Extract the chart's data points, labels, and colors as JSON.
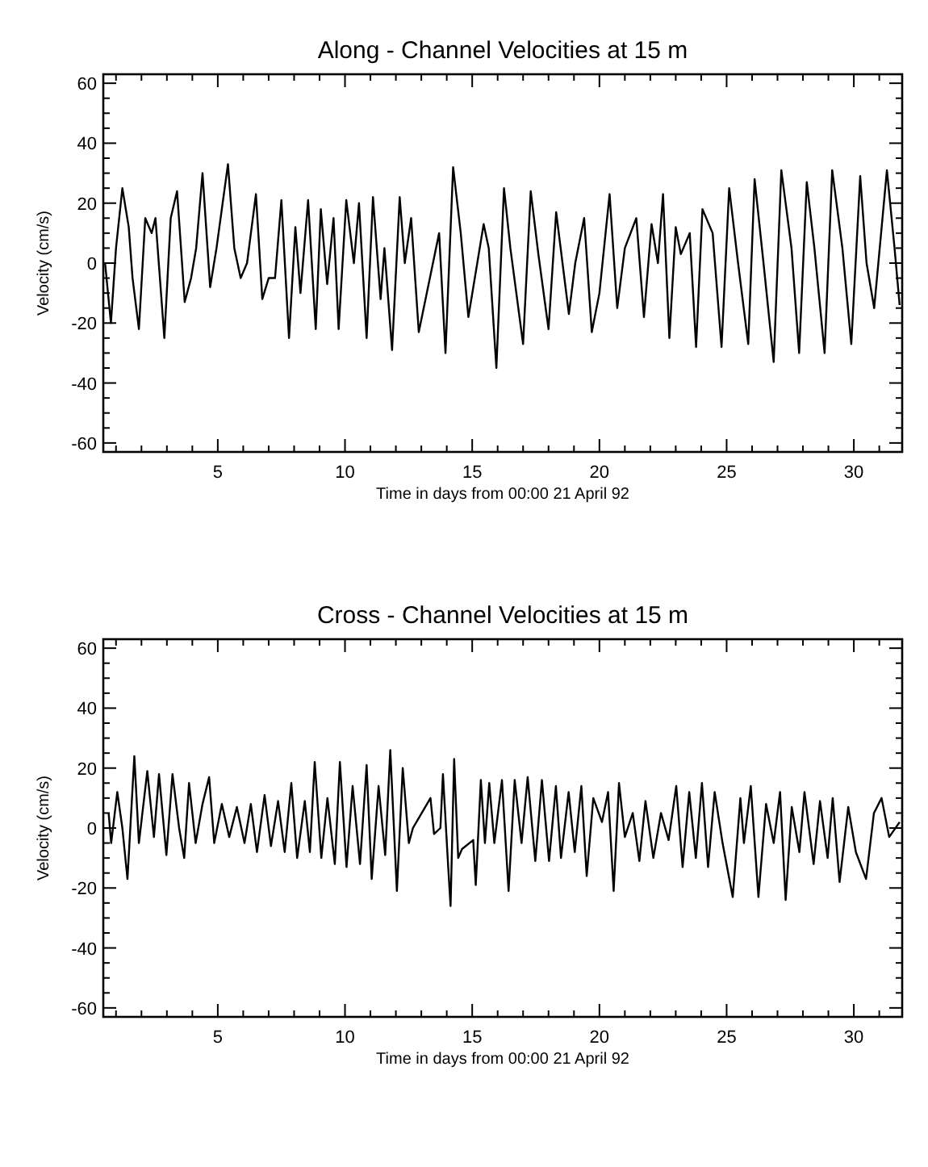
{
  "chart_data": [
    {
      "type": "line",
      "title": "Along - Channel Velocities at 15 m",
      "xlabel": "Time in days from 00:00 21 April 92",
      "ylabel": "Velocity (cm/s)",
      "xlim": [
        0.5,
        31.9
      ],
      "ylim": [
        -63,
        63
      ],
      "xticks": [
        {
          "value": 1,
          "label": null
        },
        {
          "value": 2,
          "label": null
        },
        {
          "value": 3,
          "label": null
        },
        {
          "value": 4,
          "label": null
        },
        5,
        {
          "value": 6,
          "label": null
        },
        {
          "value": 7,
          "label": null
        },
        {
          "value": 8,
          "label": null
        },
        {
          "value": 9,
          "label": null
        },
        10,
        {
          "value": 11,
          "label": null
        },
        {
          "value": 12,
          "label": null
        },
        {
          "value": 13,
          "label": null
        },
        {
          "value": 14,
          "label": null
        },
        15,
        {
          "value": 16,
          "label": null
        },
        {
          "value": 17,
          "label": null
        },
        {
          "value": 18,
          "label": null
        },
        {
          "value": 19,
          "label": null
        },
        20,
        {
          "value": 21,
          "label": null
        },
        {
          "value": 22,
          "label": null
        },
        {
          "value": 23,
          "label": null
        },
        {
          "value": 24,
          "label": null
        },
        25,
        {
          "value": 26,
          "label": null
        },
        {
          "value": 27,
          "label": null
        },
        {
          "value": 28,
          "label": null
        },
        {
          "value": 29,
          "label": null
        },
        30,
        {
          "value": 31,
          "label": null
        }
      ],
      "yticks": [
        -60,
        {
          "value": -55,
          "label": null
        },
        {
          "value": -50,
          "label": null
        },
        {
          "value": -45,
          "label": null
        },
        -40,
        {
          "value": -35,
          "label": null
        },
        {
          "value": -30,
          "label": null
        },
        {
          "value": -25,
          "label": null
        },
        -20,
        {
          "value": -15,
          "label": null
        },
        {
          "value": -10,
          "label": null
        },
        {
          "value": -5,
          "label": null
        },
        0,
        {
          "value": 5,
          "label": null
        },
        {
          "value": 10,
          "label": null
        },
        {
          "value": 15,
          "label": null
        },
        20,
        {
          "value": 25,
          "label": null
        },
        {
          "value": 30,
          "label": null
        },
        {
          "value": 35,
          "label": null
        },
        40,
        {
          "value": 45,
          "label": null
        },
        {
          "value": 50,
          "label": null
        },
        {
          "value": 55,
          "label": null
        },
        60
      ],
      "series": [
        {
          "color": "#000000",
          "x": [
            0.57,
            0.8,
            1.0,
            1.25,
            1.5,
            1.65,
            1.9,
            2.15,
            2.4,
            2.55,
            2.9,
            3.15,
            3.4,
            3.7,
            3.95,
            4.15,
            4.4,
            4.7,
            4.95,
            5.4,
            5.65,
            5.9,
            6.15,
            6.5,
            6.75,
            7.0,
            7.25,
            7.5,
            7.8,
            8.05,
            8.25,
            8.55,
            8.85,
            9.05,
            9.3,
            9.55,
            9.75,
            10.05,
            10.35,
            10.55,
            10.85,
            11.1,
            11.4,
            11.55,
            11.85,
            12.15,
            12.35,
            12.6,
            12.9,
            13.7,
            13.95,
            14.25,
            14.55,
            14.85,
            15.45,
            15.65,
            15.95,
            16.25,
            16.5,
            17.0,
            17.3,
            17.6,
            18.0,
            18.3,
            18.55,
            18.8,
            19.05,
            19.4,
            19.7,
            20.0,
            20.4,
            20.7,
            21.0,
            21.45,
            21.75,
            22.05,
            22.3,
            22.5,
            22.75,
            23.0,
            23.2,
            23.55,
            23.8,
            24.05,
            24.45,
            24.8,
            25.1,
            25.45,
            25.85,
            26.1,
            26.45,
            26.85,
            27.15,
            27.55,
            27.85,
            28.15,
            28.45,
            28.85,
            29.15,
            29.55,
            29.9,
            30.25,
            30.5,
            30.8,
            31.3,
            31.6,
            31.8
          ],
          "values": [
            0,
            -20,
            5,
            25,
            12,
            -5,
            -22,
            15,
            10,
            15,
            -25,
            15,
            24,
            -13,
            -5,
            5,
            30,
            -8,
            5,
            33,
            5,
            -5,
            0,
            23,
            -12,
            -5,
            -5,
            21,
            -25,
            12,
            -10,
            21,
            -22,
            18,
            -7,
            15,
            -22,
            21,
            0,
            20,
            -25,
            22,
            -12,
            5,
            -29,
            22,
            0,
            15,
            -23,
            10,
            -30,
            32,
            10,
            -18,
            13,
            5,
            -35,
            25,
            5,
            -27,
            24,
            3,
            -22,
            17,
            0,
            -17,
            0,
            15,
            -23,
            -10,
            23,
            -15,
            5,
            15,
            -18,
            13,
            0,
            23,
            -25,
            12,
            3,
            10,
            -28,
            18,
            10,
            -28,
            25,
            0,
            -27,
            28,
            0,
            -33,
            31,
            5,
            -30,
            27,
            5,
            -30,
            31,
            5,
            -27,
            29,
            0,
            -15,
            31,
            5,
            -14
          ]
        }
      ]
    },
    {
      "type": "line",
      "title": "Cross - Channel Velocities at 15 m",
      "xlabel": "Time in days from 00:00 21 April 92",
      "ylabel": "Velocity (cm/s)",
      "xlim": [
        0.5,
        31.9
      ],
      "ylim": [
        -63,
        63
      ],
      "xticks": [
        {
          "value": 1,
          "label": null
        },
        {
          "value": 2,
          "label": null
        },
        {
          "value": 3,
          "label": null
        },
        {
          "value": 4,
          "label": null
        },
        5,
        {
          "value": 6,
          "label": null
        },
        {
          "value": 7,
          "label": null
        },
        {
          "value": 8,
          "label": null
        },
        {
          "value": 9,
          "label": null
        },
        10,
        {
          "value": 11,
          "label": null
        },
        {
          "value": 12,
          "label": null
        },
        {
          "value": 13,
          "label": null
        },
        {
          "value": 14,
          "label": null
        },
        15,
        {
          "value": 16,
          "label": null
        },
        {
          "value": 17,
          "label": null
        },
        {
          "value": 18,
          "label": null
        },
        {
          "value": 19,
          "label": null
        },
        20,
        {
          "value": 21,
          "label": null
        },
        {
          "value": 22,
          "label": null
        },
        {
          "value": 23,
          "label": null
        },
        {
          "value": 24,
          "label": null
        },
        25,
        {
          "value": 26,
          "label": null
        },
        {
          "value": 27,
          "label": null
        },
        {
          "value": 28,
          "label": null
        },
        {
          "value": 29,
          "label": null
        },
        30,
        {
          "value": 31,
          "label": null
        }
      ],
      "yticks": [
        -60,
        {
          "value": -55,
          "label": null
        },
        {
          "value": -50,
          "label": null
        },
        {
          "value": -45,
          "label": null
        },
        -40,
        {
          "value": -35,
          "label": null
        },
        {
          "value": -30,
          "label": null
        },
        {
          "value": -25,
          "label": null
        },
        -20,
        {
          "value": -15,
          "label": null
        },
        {
          "value": -10,
          "label": null
        },
        {
          "value": -5,
          "label": null
        },
        0,
        {
          "value": 5,
          "label": null
        },
        {
          "value": 10,
          "label": null
        },
        {
          "value": 15,
          "label": null
        },
        20,
        {
          "value": 25,
          "label": null
        },
        {
          "value": 30,
          "label": null
        },
        {
          "value": 35,
          "label": null
        },
        40,
        {
          "value": 45,
          "label": null
        },
        {
          "value": 50,
          "label": null
        },
        {
          "value": 55,
          "label": null
        },
        60
      ],
      "series": [
        {
          "color": "#000000",
          "x": [
            0.71,
            0.81,
            1.05,
            1.25,
            1.45,
            1.72,
            1.9,
            2.23,
            2.49,
            2.69,
            2.98,
            3.22,
            3.48,
            3.68,
            3.87,
            4.13,
            4.4,
            4.66,
            4.86,
            5.16,
            5.45,
            5.75,
            6.05,
            6.3,
            6.54,
            6.84,
            7.09,
            7.37,
            7.63,
            7.89,
            8.12,
            8.42,
            8.62,
            8.81,
            9.07,
            9.31,
            9.6,
            9.8,
            10.06,
            10.3,
            10.59,
            10.85,
            11.05,
            11.32,
            11.58,
            11.78,
            12.04,
            12.27,
            12.51,
            12.67,
            13.36,
            13.5,
            13.75,
            13.85,
            14.05,
            14.15,
            14.29,
            14.45,
            14.6,
            15.04,
            15.14,
            15.34,
            15.5,
            15.67,
            15.87,
            16.17,
            16.43,
            16.67,
            16.94,
            17.18,
            17.48,
            17.74,
            18.02,
            18.29,
            18.49,
            18.79,
            19.03,
            19.29,
            19.5,
            19.76,
            20.1,
            20.34,
            20.56,
            20.77,
            21.0,
            21.31,
            21.57,
            21.81,
            22.12,
            22.42,
            22.72,
            23.02,
            23.27,
            23.53,
            23.79,
            24.03,
            24.27,
            24.53,
            24.84,
            25.24,
            25.54,
            25.68,
            25.95,
            26.25,
            26.55,
            26.85,
            27.1,
            27.32,
            27.56,
            27.86,
            28.06,
            28.42,
            28.67,
            28.97,
            29.17,
            29.44,
            29.78,
            30.08,
            30.48,
            30.79,
            31.09,
            31.39,
            31.8
          ],
          "values": [
            5,
            -5,
            12,
            0,
            -17,
            24,
            -5,
            19,
            -3,
            18,
            -9,
            18,
            0,
            -10,
            15,
            -5,
            8,
            17,
            -5,
            8,
            -3,
            7,
            -5,
            8,
            -8,
            11,
            -6,
            9,
            -8,
            15,
            -10,
            9,
            -8,
            22,
            -10,
            10,
            -12,
            22,
            -13,
            14,
            -12,
            21,
            -17,
            14,
            -9,
            26,
            -21,
            20,
            -5,
            0,
            10,
            -2,
            0,
            18,
            -12,
            -26,
            23,
            -10,
            -7,
            -4,
            -19,
            16,
            -5,
            15,
            -5,
            16,
            -21,
            16,
            -5,
            17,
            -11,
            16,
            -11,
            14,
            -10,
            12,
            -8,
            14,
            -16,
            10,
            2,
            12,
            -21,
            15,
            -3,
            5,
            -11,
            9,
            -10,
            5,
            -4,
            14,
            -13,
            12,
            -10,
            15,
            -13,
            12,
            -5,
            -23,
            10,
            -5,
            14,
            -23,
            8,
            -5,
            12,
            -24,
            7,
            -8,
            12,
            -12,
            9,
            -10,
            10,
            -18,
            7,
            -8,
            -17,
            5,
            10,
            -3,
            2
          ]
        }
      ]
    }
  ]
}
